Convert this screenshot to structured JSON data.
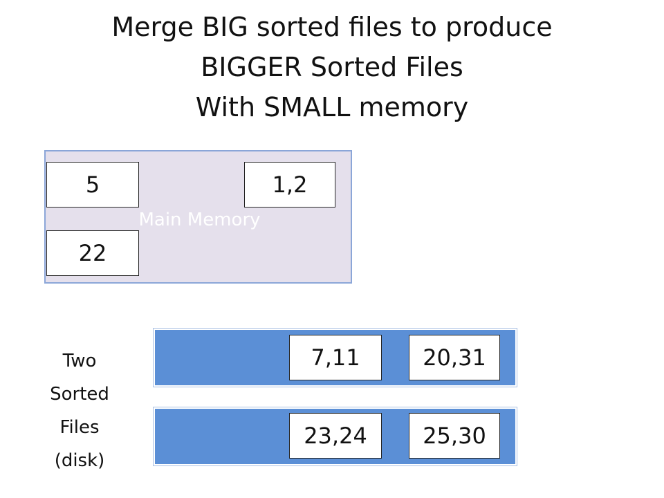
{
  "title": {
    "line1": "Merge BIG sorted files to produce",
    "line2": "BIGGER Sorted Files",
    "line3": "With SMALL memory"
  },
  "main_memory": {
    "label": "Main Memory",
    "blocks": [
      "5",
      "1,2",
      "22"
    ]
  },
  "disk": {
    "label_lines": [
      "Two",
      "Sorted",
      "Files",
      "(disk)"
    ],
    "files": [
      {
        "blocks": [
          "7,11",
          "20,31"
        ]
      },
      {
        "blocks": [
          "23,24",
          "25,30"
        ]
      }
    ]
  },
  "colors": {
    "memory_fill": "#e5e0ec",
    "disk_fill": "#5b8fd6"
  }
}
